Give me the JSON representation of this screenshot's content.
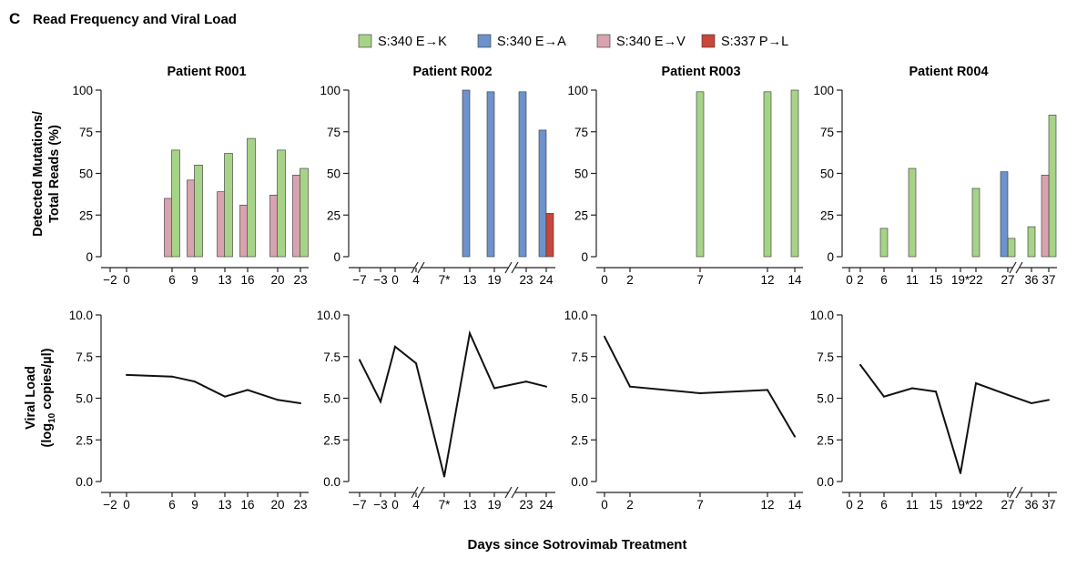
{
  "panel_letter": "C",
  "panel_title": "Read Frequency and Viral Load",
  "legend": [
    {
      "label": "S:340 E→K",
      "color": "#a6d387"
    },
    {
      "label": "S:340 E→A",
      "color": "#6d92cc"
    },
    {
      "label": "S:340 E→V",
      "color": "#d7a3ae"
    },
    {
      "label": "S:337 P→L",
      "color": "#c8463a"
    }
  ],
  "ylabel_top_1": "Detected Mutations/",
  "ylabel_top_2": "Total Reads (%)",
  "ylabel_bottom_1": "Viral Load",
  "ylabel_bottom_2_pre": "(log",
  "ylabel_bottom_2_sub": "10",
  "ylabel_bottom_2_post": " copies/µl)",
  "xlabel": "Days since Sotrovimab Treatment",
  "chart_data": [
    {
      "type": "bar",
      "title": "Patient R001",
      "x_ticks": [
        "−2",
        "0",
        "6",
        "9",
        "13",
        "16",
        "20",
        "23"
      ],
      "ylim": [
        0,
        100
      ],
      "yticks": [
        "0",
        "25",
        "50",
        "75",
        "100"
      ],
      "series": [
        {
          "name": "S:340 E→V",
          "points": [
            {
              "tick": 2,
              "value": 35
            },
            {
              "tick": 3,
              "value": 46
            },
            {
              "tick": 4,
              "value": 39
            },
            {
              "tick": 5,
              "value": 31
            },
            {
              "tick": 6,
              "value": 37
            },
            {
              "tick": 7,
              "value": 49
            }
          ]
        },
        {
          "name": "S:340 E→K",
          "points": [
            {
              "tick": 2,
              "value": 64
            },
            {
              "tick": 3,
              "value": 55
            },
            {
              "tick": 4,
              "value": 62
            },
            {
              "tick": 5,
              "value": 71
            },
            {
              "tick": 6,
              "value": 64
            },
            {
              "tick": 7,
              "value": 53
            }
          ]
        }
      ]
    },
    {
      "type": "bar",
      "title": "Patient R002",
      "x_ticks": [
        "−7",
        "−3",
        "0",
        "4",
        "7*",
        "13",
        "19",
        "23",
        "24"
      ],
      "breaks": [
        3.5,
        6.5
      ],
      "ylim": [
        0,
        100
      ],
      "yticks": [
        "0",
        "25",
        "50",
        "75",
        "100"
      ],
      "series": [
        {
          "name": "S:340 E→A",
          "points": [
            {
              "tick": 5,
              "value": 100
            },
            {
              "tick": 6,
              "value": 99
            },
            {
              "tick": 7,
              "value": 99
            },
            {
              "tick": 8,
              "value": 76
            }
          ]
        },
        {
          "name": "S:337 P→L",
          "points": [
            {
              "tick": 8,
              "value": 26
            }
          ]
        }
      ]
    },
    {
      "type": "bar",
      "title": "Patient R003",
      "x_ticks": [
        "0",
        "2",
        "7",
        "12",
        "14"
      ],
      "ylim": [
        0,
        100
      ],
      "yticks": [
        "0",
        "25",
        "50",
        "75",
        "100"
      ],
      "series": [
        {
          "name": "S:340 E→K",
          "points": [
            {
              "tick": 2,
              "value": 99
            },
            {
              "tick": 3,
              "value": 99
            },
            {
              "tick": 4,
              "value": 100
            }
          ]
        }
      ]
    },
    {
      "type": "bar",
      "title": "Patient R004",
      "x_ticks": [
        "0",
        "2",
        "6",
        "11",
        "15",
        "19*",
        "22",
        "27",
        "36",
        "37"
      ],
      "breaks": [
        7.5
      ],
      "ylim": [
        0,
        100
      ],
      "yticks": [
        "0",
        "25",
        "50",
        "75",
        "100"
      ],
      "series": [
        {
          "name": "S:340 E→K",
          "points": [
            {
              "tick": 2,
              "value": 17
            },
            {
              "tick": 3,
              "value": 53
            },
            {
              "tick": 6,
              "value": 41
            },
            {
              "tick": 7,
              "value": 11
            },
            {
              "tick": 8,
              "value": 18
            },
            {
              "tick": 9,
              "value": 85
            }
          ]
        },
        {
          "name": "S:340 E→A",
          "points": [
            {
              "tick": 7,
              "value": 51
            }
          ]
        },
        {
          "name": "S:340 E→V",
          "points": [
            {
              "tick": 9,
              "value": 49
            }
          ]
        }
      ]
    },
    {
      "type": "line",
      "title": "Patient R001 viral load",
      "x_ticks": [
        "−2",
        "0",
        "6",
        "9",
        "13",
        "16",
        "20",
        "23"
      ],
      "ylim": [
        0,
        10
      ],
      "yticks": [
        "0.0",
        "2.5",
        "5.0",
        "7.5",
        "10.0"
      ],
      "points": [
        {
          "tick": 1,
          "value": 6.4
        },
        {
          "tick": 2,
          "value": 6.3
        },
        {
          "tick": 3,
          "value": 6.0
        },
        {
          "tick": 4,
          "value": 5.1
        },
        {
          "tick": 5,
          "value": 5.5
        },
        {
          "tick": 6,
          "value": 4.9
        },
        {
          "tick": 7,
          "value": 4.7
        }
      ]
    },
    {
      "type": "line",
      "title": "Patient R002 viral load",
      "x_ticks": [
        "−7",
        "−3",
        "0",
        "4",
        "7*",
        "13",
        "19",
        "23",
        "24"
      ],
      "breaks": [
        3.5,
        6.5
      ],
      "ylim": [
        0,
        10
      ],
      "yticks": [
        "0.0",
        "2.5",
        "5.0",
        "7.5",
        "10.0"
      ],
      "points": [
        {
          "tick": 0,
          "value": 7.3
        },
        {
          "tick": 1,
          "value": 4.8
        },
        {
          "tick": 2,
          "value": 8.1
        },
        {
          "tick": 3,
          "value": 7.1
        },
        {
          "tick": 4,
          "value": 0.3
        },
        {
          "tick": 5,
          "value": 8.9
        },
        {
          "tick": 6,
          "value": 5.6
        },
        {
          "tick": 7,
          "value": 6.0
        },
        {
          "tick": 8,
          "value": 5.7
        }
      ]
    },
    {
      "type": "line",
      "title": "Patient R003 viral load",
      "x_ticks": [
        "0",
        "2",
        "7",
        "12",
        "14"
      ],
      "ylim": [
        0,
        10
      ],
      "yticks": [
        "0.0",
        "2.5",
        "5.0",
        "7.5",
        "10.0"
      ],
      "points": [
        {
          "tick": 0,
          "value": 8.7
        },
        {
          "tick": 1,
          "value": 5.7
        },
        {
          "tick": 2,
          "value": 5.3
        },
        {
          "tick": 3,
          "value": 5.5
        },
        {
          "tick": 4,
          "value": 2.7
        }
      ]
    },
    {
      "type": "line",
      "title": "Patient R004 viral load",
      "x_ticks": [
        "0",
        "2",
        "6",
        "11",
        "15",
        "19*",
        "22",
        "27",
        "36",
        "37"
      ],
      "breaks": [
        7.5
      ],
      "ylim": [
        0,
        10
      ],
      "yticks": [
        "0.0",
        "2.5",
        "5.0",
        "7.5",
        "10.0"
      ],
      "points": [
        {
          "tick": 1,
          "value": 7.0
        },
        {
          "tick": 2,
          "value": 5.1
        },
        {
          "tick": 3,
          "value": 5.6
        },
        {
          "tick": 4,
          "value": 5.4
        },
        {
          "tick": 5,
          "value": 0.5
        },
        {
          "tick": 6,
          "value": 5.9
        },
        {
          "tick": 7,
          "value": 5.2
        },
        {
          "tick": 8,
          "value": 4.7
        },
        {
          "tick": 9,
          "value": 4.9
        }
      ]
    }
  ]
}
